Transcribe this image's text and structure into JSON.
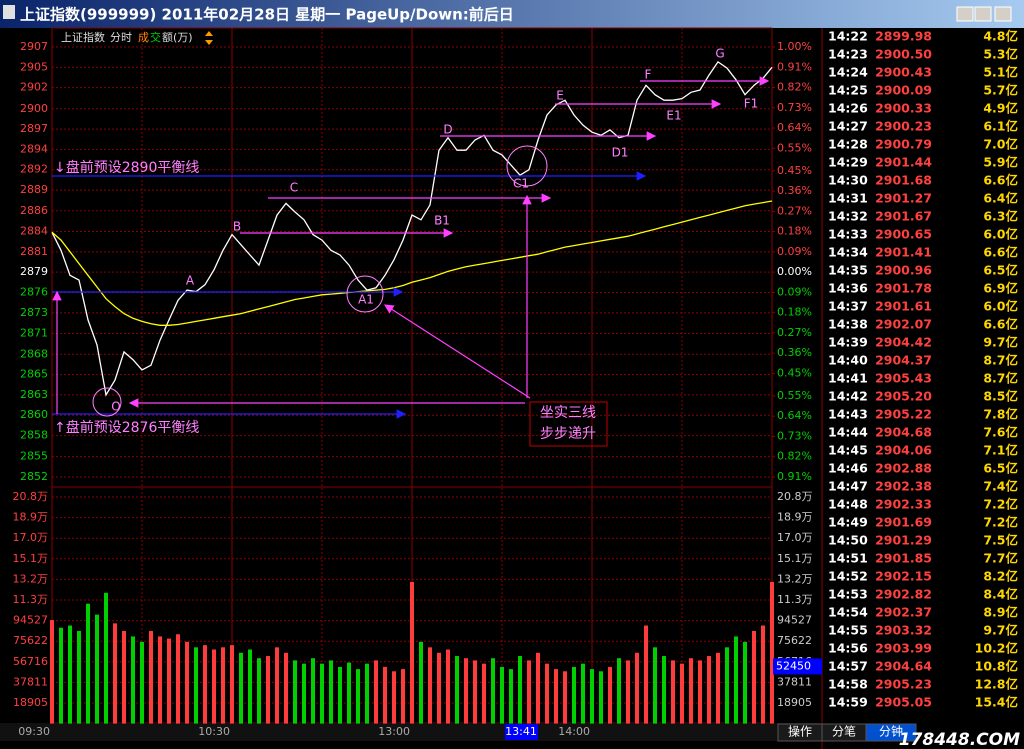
{
  "window": {
    "title": "上证指数(999999) 2011年02月28日 星期一 PageUp/Down:前后日"
  },
  "toolbar": {
    "index": "上证指数",
    "mode": "分时",
    "metric": [
      "成",
      "交",
      "额(万)"
    ]
  },
  "chart_data": [
    {
      "type": "line",
      "x": [
        0,
        3,
        6,
        9,
        12,
        15,
        18,
        21,
        24,
        27,
        30,
        33,
        36,
        39,
        42,
        45,
        48,
        51,
        54,
        57,
        60,
        63,
        66,
        69,
        72,
        75,
        78,
        81,
        84,
        87,
        90,
        93,
        96,
        99,
        102,
        105,
        108,
        111,
        114,
        117,
        120,
        123,
        126,
        129,
        132,
        135,
        138,
        141,
        144,
        147,
        150,
        153,
        156,
        159,
        162,
        165,
        168,
        171,
        174,
        177,
        180,
        183,
        186,
        189,
        192,
        195,
        198,
        201,
        204,
        207,
        210,
        213,
        216,
        219,
        222,
        225,
        228,
        231,
        234,
        237,
        240
      ],
      "series": [
        {
          "color": "#ffffff",
          "values": [
            2884.0,
            2881.7,
            2878.5,
            2877.9,
            2872.8,
            2869.6,
            2863.2,
            2865.1,
            2868.7,
            2867.7,
            2866.4,
            2867.0,
            2870.2,
            2872.8,
            2875.3,
            2876.6,
            2876.4,
            2877.3,
            2879.2,
            2881.7,
            2883.7,
            2882.4,
            2881.1,
            2879.8,
            2883.0,
            2886.2,
            2887.7,
            2886.6,
            2885.6,
            2883.7,
            2883.0,
            2881.7,
            2881.1,
            2879.8,
            2877.9,
            2876.6,
            2876.9,
            2878.5,
            2880.5,
            2883.0,
            2886.2,
            2885.6,
            2887.5,
            2894.5,
            2896.1,
            2894.5,
            2894.5,
            2895.8,
            2896.4,
            2894.5,
            2893.9,
            2892.6,
            2891.3,
            2892.0,
            2895.8,
            2899.0,
            2900.3,
            2900.9,
            2899.0,
            2897.7,
            2896.8,
            2896.4,
            2897.1,
            2896.1,
            2896.4,
            2900.9,
            2902.8,
            2901.6,
            2900.9,
            2900.9,
            2901.1,
            2901.9,
            2902.2,
            2904.1,
            2905.8,
            2905.0,
            2903.5,
            2901.6,
            2902.8,
            2903.7,
            2905.1
          ]
        },
        {
          "color": "#ffff00",
          "values": [
            2884.0,
            2883.0,
            2881.5,
            2880.0,
            2878.5,
            2877.0,
            2875.5,
            2874.5,
            2873.6,
            2873.0,
            2872.6,
            2872.3,
            2872.1,
            2872.1,
            2872.2,
            2872.4,
            2872.6,
            2872.8,
            2873.0,
            2873.2,
            2873.4,
            2873.6,
            2873.9,
            2874.2,
            2874.5,
            2874.8,
            2875.1,
            2875.4,
            2875.6,
            2875.8,
            2876.0,
            2876.1,
            2876.2,
            2876.3,
            2876.4,
            2876.5,
            2876.6,
            2876.7,
            2876.9,
            2877.2,
            2877.6,
            2877.9,
            2878.2,
            2878.6,
            2879.0,
            2879.3,
            2879.6,
            2879.8,
            2880.0,
            2880.2,
            2880.4,
            2880.6,
            2880.8,
            2881.0,
            2881.2,
            2881.5,
            2881.8,
            2882.1,
            2882.3,
            2882.5,
            2882.7,
            2882.9,
            2883.1,
            2883.3,
            2883.5,
            2883.8,
            2884.1,
            2884.4,
            2884.7,
            2885.0,
            2885.3,
            2885.6,
            2885.9,
            2886.2,
            2886.5,
            2886.8,
            2887.1,
            2887.4,
            2887.6,
            2887.8,
            2888.0
          ]
        }
      ],
      "xlim": [
        0,
        240
      ],
      "xticks": [
        {
          "value": 0,
          "label": "09:30"
        },
        {
          "value": 60,
          "label": "10:30"
        },
        {
          "value": 120,
          "label": "13:00"
        },
        {
          "value": 180,
          "label": "14:00"
        }
      ],
      "ylim": [
        2852.7,
        2907.7
      ],
      "yticks": [
        {
          "value": 2907.7,
          "label": "2907"
        },
        {
          "value": 2905.1,
          "label": "2905"
        },
        {
          "value": 2902.5,
          "label": "2902"
        },
        {
          "value": 2899.8,
          "label": "2900"
        },
        {
          "value": 2897.2,
          "label": "2897"
        },
        {
          "value": 2894.6,
          "label": "2894"
        },
        {
          "value": 2892.0,
          "label": "2892"
        },
        {
          "value": 2889.4,
          "label": "2889"
        },
        {
          "value": 2886.75,
          "label": "2886"
        },
        {
          "value": 2884.1,
          "label": "2884"
        },
        {
          "value": 2881.5,
          "label": "2881"
        },
        {
          "value": 2878.9,
          "label": "2879"
        },
        {
          "value": 2876.3,
          "label": "2876"
        },
        {
          "value": 2873.7,
          "label": "2873"
        },
        {
          "value": 2871.05,
          "label": "2871"
        },
        {
          "value": 2868.4,
          "label": "2868"
        },
        {
          "value": 2865.8,
          "label": "2865"
        },
        {
          "value": 2863.2,
          "label": "2863"
        },
        {
          "value": 2860.6,
          "label": "2860"
        },
        {
          "value": 2858.0,
          "label": "2858"
        },
        {
          "value": 2855.3,
          "label": "2855"
        },
        {
          "value": 2852.7,
          "label": "2852"
        }
      ],
      "y2lim": [
        -0.91,
        1.0
      ],
      "y2ticks": [
        {
          "value": 1.0,
          "label": "1.00%"
        },
        {
          "value": 0.91,
          "label": "0.91%"
        },
        {
          "value": 0.82,
          "label": "0.82%"
        },
        {
          "value": 0.73,
          "label": "0.73%"
        },
        {
          "value": 0.64,
          "label": "0.64%"
        },
        {
          "value": 0.55,
          "label": "0.55%"
        },
        {
          "value": 0.45,
          "label": "0.45%"
        },
        {
          "value": 0.36,
          "label": "0.36%"
        },
        {
          "value": 0.27,
          "label": "0.27%"
        },
        {
          "value": 0.18,
          "label": "0.18%"
        },
        {
          "value": 0.09,
          "label": "0.09%"
        },
        {
          "value": 0,
          "label": "0.00%"
        },
        {
          "value": -0.09,
          "label": "0.09%"
        },
        {
          "value": -0.18,
          "label": "0.18%"
        },
        {
          "value": -0.27,
          "label": "0.27%"
        },
        {
          "value": -0.36,
          "label": "0.36%"
        },
        {
          "value": -0.45,
          "label": "0.45%"
        },
        {
          "value": -0.55,
          "label": "0.55%"
        },
        {
          "value": -0.64,
          "label": "0.64%"
        },
        {
          "value": -0.73,
          "label": "0.73%"
        },
        {
          "value": -0.82,
          "label": "0.82%"
        },
        {
          "value": -0.91,
          "label": "0.91%"
        }
      ],
      "grid": true,
      "cursor_time": "13:41",
      "annotations": {
        "points": [
          "O",
          "A",
          "B",
          "C",
          "A1",
          "B1",
          "D",
          "C1",
          "E",
          "D1",
          "F",
          "E1",
          "G",
          "F1"
        ],
        "notes": [
          "↓盘前预设2890平衡线",
          "↑盘前预设2876平衡线",
          "坐实三线",
          "步步递升"
        ]
      }
    },
    {
      "type": "bar",
      "x": [
        0,
        3,
        6,
        9,
        12,
        15,
        18,
        21,
        24,
        27,
        30,
        33,
        36,
        39,
        42,
        45,
        48,
        51,
        54,
        57,
        60,
        63,
        66,
        69,
        72,
        75,
        78,
        81,
        84,
        87,
        90,
        93,
        96,
        99,
        102,
        105,
        108,
        111,
        114,
        117,
        120,
        123,
        126,
        129,
        132,
        135,
        138,
        141,
        144,
        147,
        150,
        153,
        156,
        159,
        162,
        165,
        168,
        171,
        174,
        177,
        180,
        183,
        186,
        189,
        192,
        195,
        198,
        201,
        204,
        207,
        210,
        213,
        216,
        219,
        222,
        225,
        228,
        231,
        234,
        237,
        240
      ],
      "values": [
        95000,
        88000,
        90000,
        85000,
        110000,
        100000,
        120000,
        92000,
        85000,
        80000,
        75000,
        85000,
        80000,
        78000,
        82000,
        75000,
        70000,
        72000,
        68000,
        70000,
        72000,
        65000,
        68000,
        60000,
        62000,
        70000,
        65000,
        58000,
        55000,
        60000,
        55000,
        58000,
        52000,
        56000,
        50000,
        55000,
        58000,
        52000,
        48000,
        50000,
        130000,
        75000,
        70000,
        65000,
        68000,
        62000,
        60000,
        58000,
        55000,
        60000,
        52000,
        50000,
        62000,
        58000,
        65000,
        55000,
        50000,
        48000,
        52000,
        55000,
        50000,
        48000,
        52000,
        60000,
        58000,
        65000,
        90000,
        70000,
        62000,
        58000,
        55000,
        60000,
        58000,
        62000,
        65000,
        70000,
        80000,
        75000,
        85000,
        90000,
        130000
      ],
      "xlim": [
        0,
        240
      ],
      "ylim": [
        0,
        207959
      ],
      "yticks": [
        {
          "value": 207959,
          "label": "20.8万"
        },
        {
          "value": 189054,
          "label": "18.9万"
        },
        {
          "value": 170149,
          "label": "17.0万"
        },
        {
          "value": 151243,
          "label": "15.1万"
        },
        {
          "value": 132338,
          "label": "13.2万"
        },
        {
          "value": 113432,
          "label": "11.3万"
        },
        94527,
        75622,
        56716,
        37811,
        18905
      ],
      "up_color": "#ff3c3c",
      "down_color": "#00d000",
      "cursor_value": 52450
    }
  ],
  "table": {
    "rows": [
      [
        "14:22",
        "2899.98",
        "4.8亿"
      ],
      [
        "14:23",
        "2900.50",
        "5.3亿"
      ],
      [
        "14:24",
        "2900.43",
        "5.1亿"
      ],
      [
        "14:25",
        "2900.09",
        "5.7亿"
      ],
      [
        "14:26",
        "2900.33",
        "4.9亿"
      ],
      [
        "14:27",
        "2900.23",
        "6.1亿"
      ],
      [
        "14:28",
        "2900.79",
        "7.0亿"
      ],
      [
        "14:29",
        "2901.44",
        "5.9亿"
      ],
      [
        "14:30",
        "2901.68",
        "6.6亿"
      ],
      [
        "14:31",
        "2901.27",
        "6.4亿"
      ],
      [
        "14:32",
        "2901.67",
        "6.3亿"
      ],
      [
        "14:33",
        "2900.65",
        "6.0亿"
      ],
      [
        "14:34",
        "2901.41",
        "6.6亿"
      ],
      [
        "14:35",
        "2900.96",
        "6.5亿"
      ],
      [
        "14:36",
        "2901.78",
        "6.9亿"
      ],
      [
        "14:37",
        "2901.61",
        "6.0亿"
      ],
      [
        "14:38",
        "2902.07",
        "6.6亿"
      ],
      [
        "14:39",
        "2904.42",
        "9.7亿"
      ],
      [
        "14:40",
        "2904.37",
        "8.7亿"
      ],
      [
        "14:41",
        "2905.43",
        "8.7亿"
      ],
      [
        "14:42",
        "2905.20",
        "8.5亿"
      ],
      [
        "14:43",
        "2905.22",
        "7.8亿"
      ],
      [
        "14:44",
        "2904.68",
        "7.6亿"
      ],
      [
        "14:45",
        "2904.06",
        "7.1亿"
      ],
      [
        "14:46",
        "2902.88",
        "6.5亿"
      ],
      [
        "14:47",
        "2902.38",
        "7.4亿"
      ],
      [
        "14:48",
        "2902.33",
        "7.2亿"
      ],
      [
        "14:49",
        "2901.69",
        "7.2亿"
      ],
      [
        "14:50",
        "2901.29",
        "7.5亿"
      ],
      [
        "14:51",
        "2901.85",
        "7.7亿"
      ],
      [
        "14:52",
        "2902.15",
        "8.2亿"
      ],
      [
        "14:53",
        "2902.82",
        "8.4亿"
      ],
      [
        "14:54",
        "2902.37",
        "8.9亿"
      ],
      [
        "14:55",
        "2903.32",
        "9.7亿"
      ],
      [
        "14:56",
        "2903.99",
        "10.2亿"
      ],
      [
        "14:57",
        "2904.64",
        "10.8亿"
      ],
      [
        "14:58",
        "2905.23",
        "12.8亿"
      ],
      [
        "14:59",
        "2905.05",
        "15.4亿"
      ]
    ]
  },
  "tabs": [
    "操作",
    "分笔",
    "分钟"
  ],
  "watermark": "178448.COM"
}
